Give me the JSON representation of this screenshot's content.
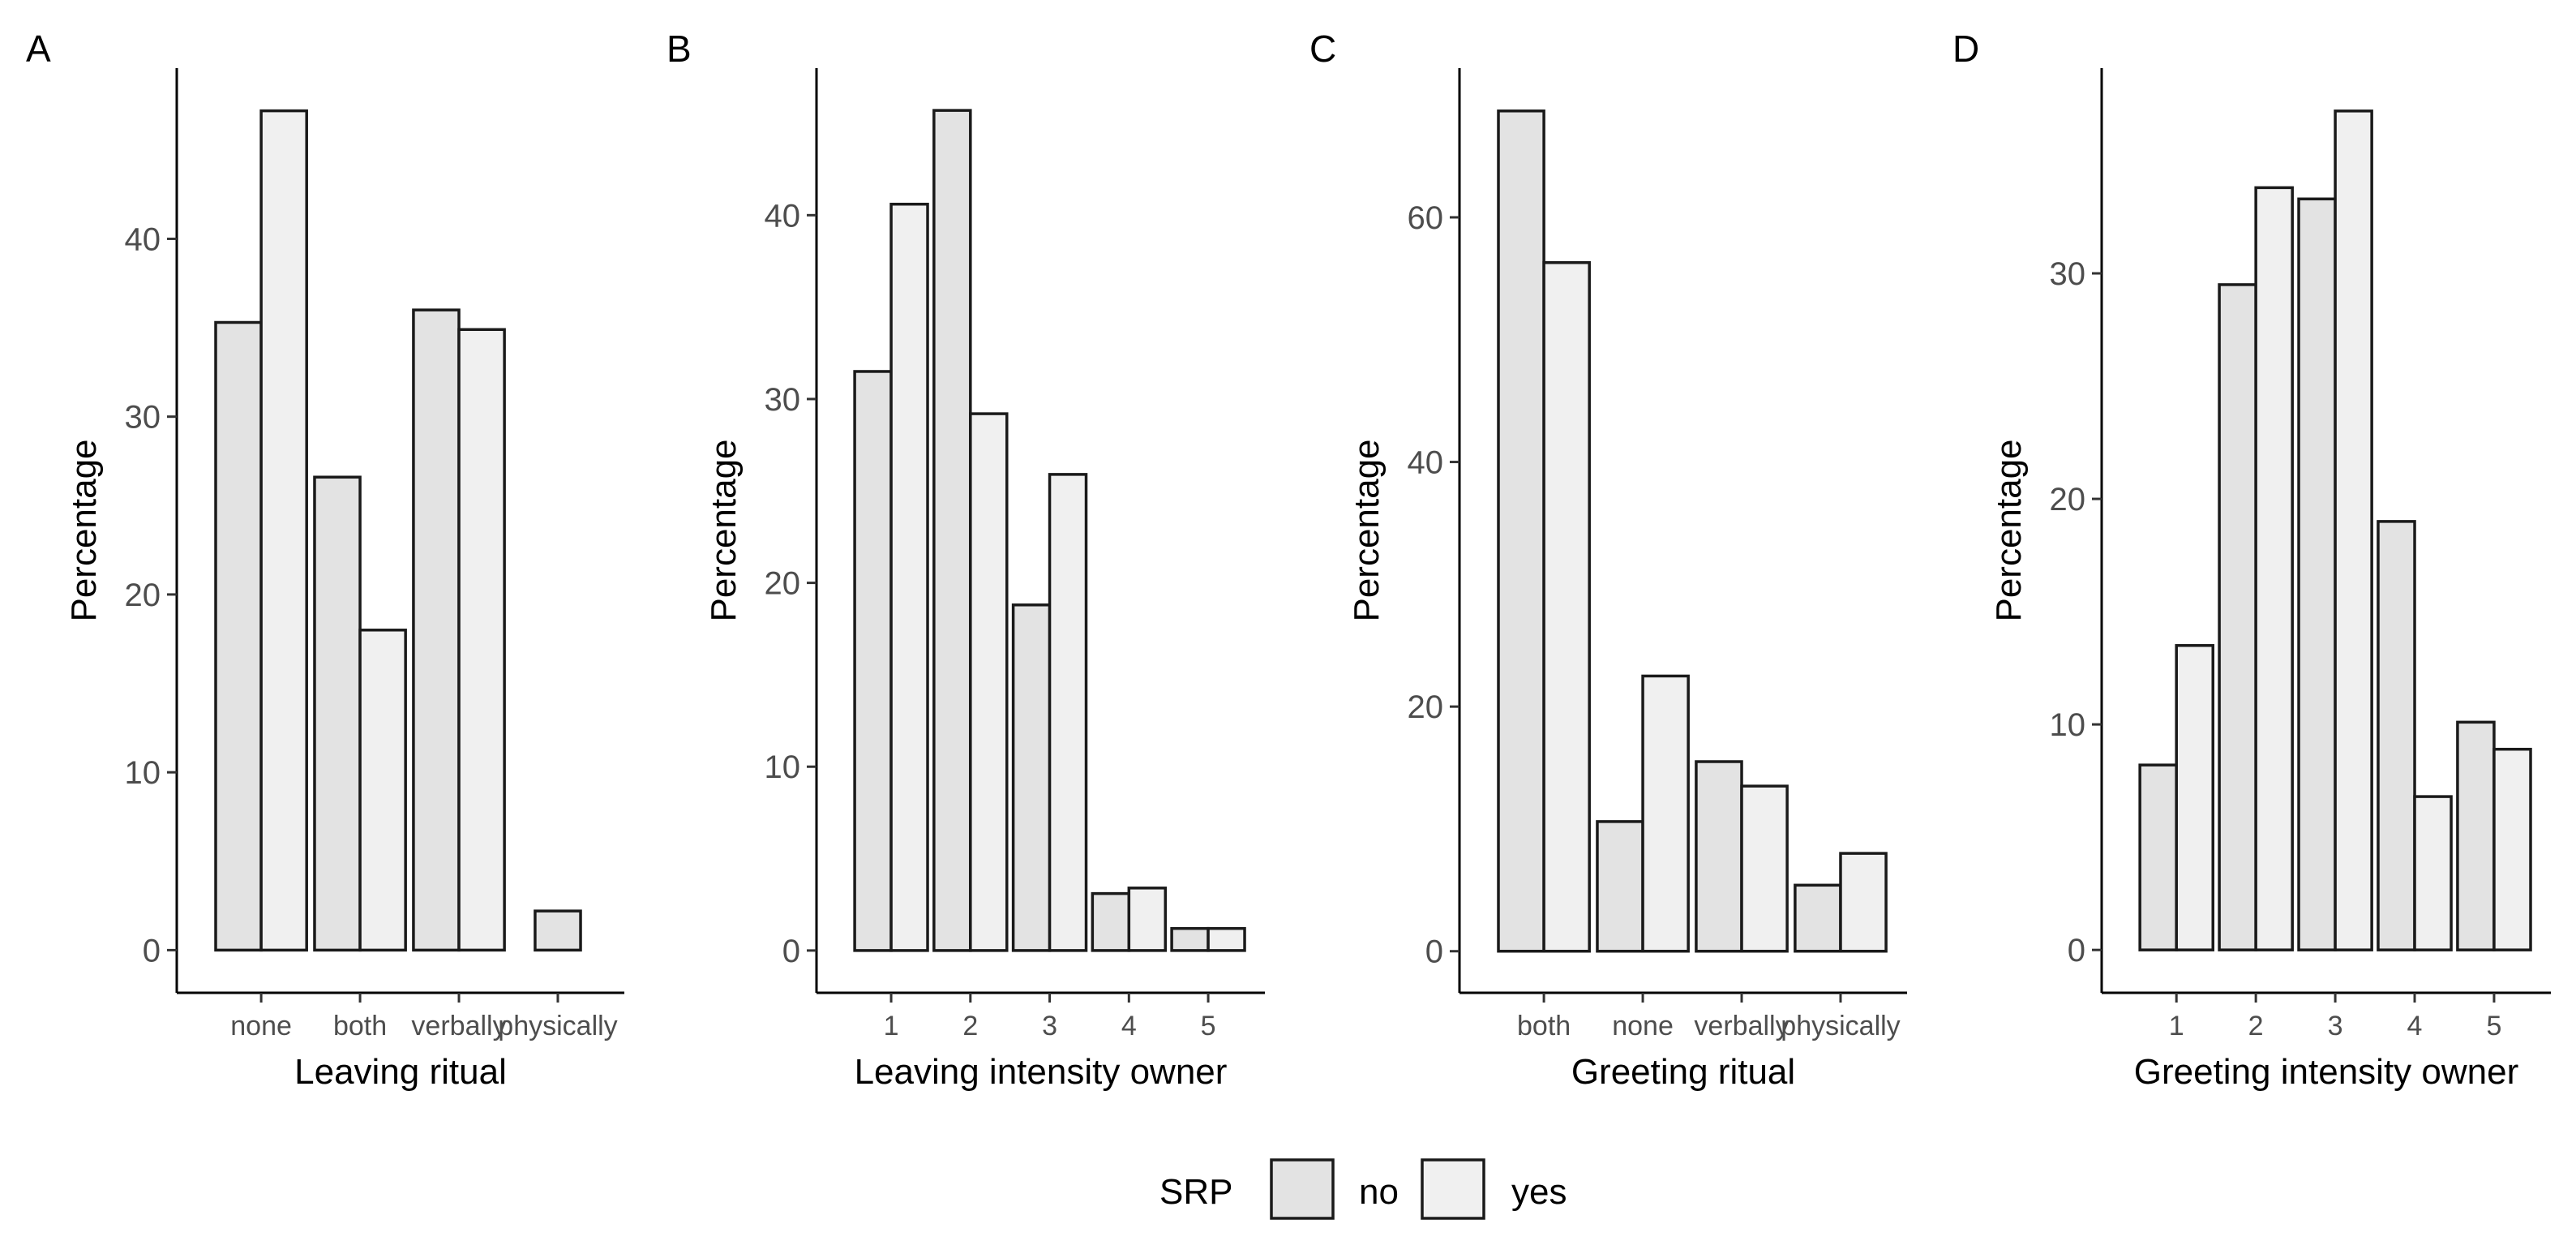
{
  "legend": {
    "title": "SRP",
    "entries": [
      {
        "label": "no",
        "color": "#e3e3e3"
      },
      {
        "label": "yes",
        "color": "#f0f0f0"
      }
    ]
  },
  "chart_data": [
    {
      "panel": "A",
      "type": "bar",
      "xlabel": "Leaving ritual",
      "ylabel": "Percentage",
      "categories": [
        "none",
        "both",
        "verbally",
        "physically"
      ],
      "series": [
        {
          "name": "no",
          "values": [
            35.3,
            26.6,
            36.0,
            2.2
          ]
        },
        {
          "name": "yes",
          "values": [
            47.2,
            18.0,
            34.9,
            null
          ]
        }
      ],
      "ylim": [
        -2.4,
        49.6
      ],
      "yticks": [
        0,
        10,
        20,
        30,
        40
      ],
      "dodge": "preserve-total"
    },
    {
      "panel": "B",
      "type": "bar",
      "xlabel": "Leaving intensity owner",
      "ylabel": "Percentage",
      "categories": [
        "1",
        "2",
        "3",
        "4",
        "5"
      ],
      "series": [
        {
          "name": "no",
          "values": [
            31.5,
            45.7,
            18.8,
            3.1,
            1.2
          ]
        },
        {
          "name": "yes",
          "values": [
            40.6,
            29.2,
            25.9,
            3.4,
            1.2
          ]
        }
      ],
      "ylim": [
        -2.3,
        48.0
      ],
      "yticks": [
        0,
        10,
        20,
        30,
        40
      ]
    },
    {
      "panel": "C",
      "type": "bar",
      "xlabel": "Greeting ritual",
      "ylabel": "Percentage",
      "categories": [
        "both",
        "none",
        "verbally",
        "physically"
      ],
      "series": [
        {
          "name": "no",
          "values": [
            68.7,
            10.6,
            15.5,
            5.4
          ]
        },
        {
          "name": "yes",
          "values": [
            56.3,
            22.5,
            13.5,
            8.0
          ]
        }
      ],
      "ylim": [
        -3.4,
        72.2
      ],
      "yticks": [
        0,
        20,
        40,
        60
      ]
    },
    {
      "panel": "D",
      "type": "bar",
      "xlabel": "Greeting intensity owner",
      "ylabel": "Percentage",
      "categories": [
        "1",
        "2",
        "3",
        "4",
        "5"
      ],
      "series": [
        {
          "name": "no",
          "values": [
            8.2,
            29.5,
            33.3,
            19.0,
            10.1
          ]
        },
        {
          "name": "yes",
          "values": [
            13.5,
            33.8,
            37.2,
            6.8,
            8.9
          ]
        }
      ],
      "ylim": [
        -1.9,
        39.1
      ],
      "yticks": [
        0,
        10,
        20,
        30
      ]
    }
  ]
}
